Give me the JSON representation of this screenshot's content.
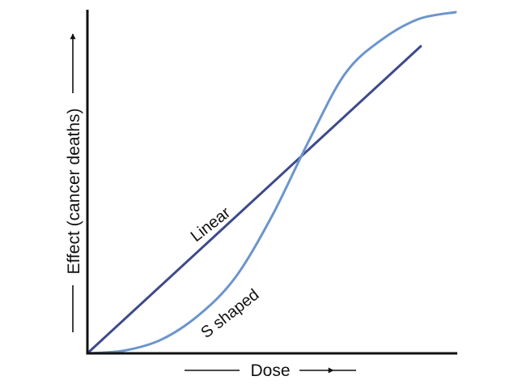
{
  "chart_data": {
    "type": "line",
    "xlabel": "Dose",
    "ylabel": "Effect (cancer deaths)",
    "xlim": [
      0,
      1
    ],
    "ylim": [
      0,
      1
    ],
    "grid": false,
    "axis_ticks": false,
    "series": [
      {
        "name": "Linear",
        "color": "#3d4a8a",
        "x": [
          0,
          0.905
        ],
        "y": [
          0,
          0.9
        ]
      },
      {
        "name": "S shaped",
        "color": "#6b95cc",
        "x": [
          0,
          0.1,
          0.2,
          0.3,
          0.4,
          0.5,
          0.6,
          0.7,
          0.8,
          0.9,
          1.0
        ],
        "y": [
          0,
          0.008,
          0.04,
          0.11,
          0.22,
          0.4,
          0.62,
          0.82,
          0.92,
          0.98,
          1.0
        ]
      }
    ]
  }
}
